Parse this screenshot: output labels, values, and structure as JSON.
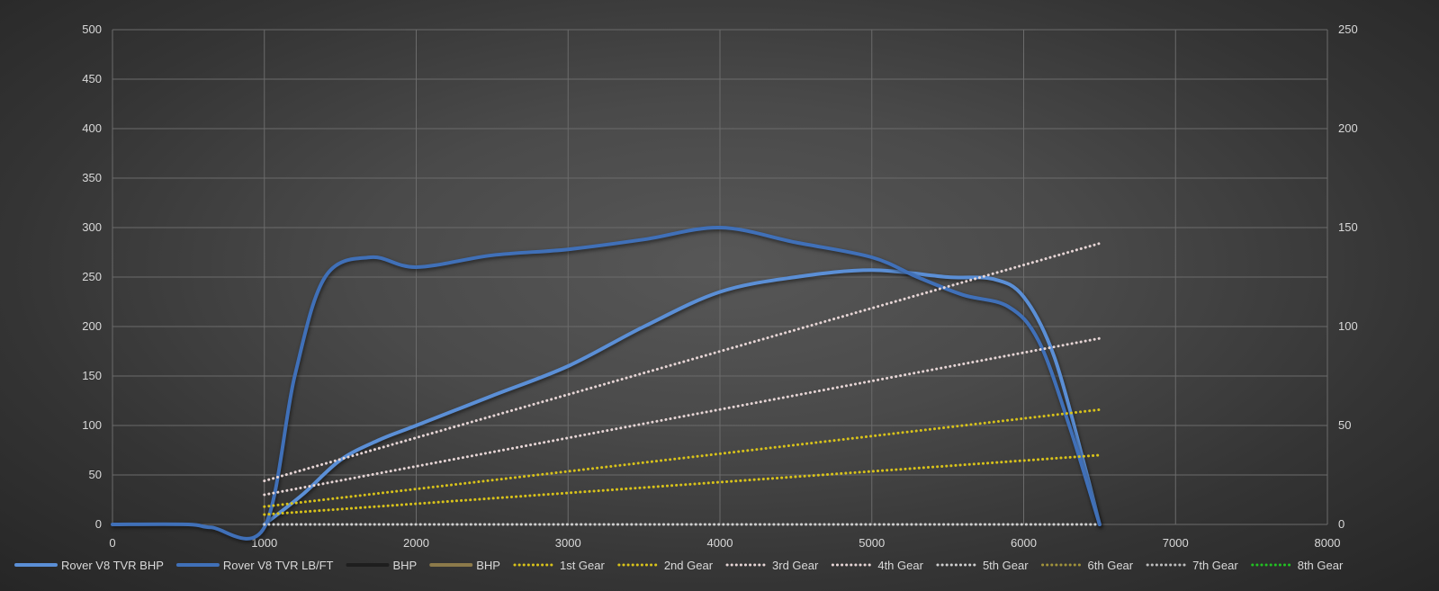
{
  "chart_data": {
    "type": "line",
    "x_axis": {
      "min": 0,
      "max": 8000,
      "ticks": [
        0,
        1000,
        2000,
        3000,
        4000,
        5000,
        6000,
        7000,
        8000
      ]
    },
    "y_axis_left": {
      "min": 0,
      "max": 500,
      "ticks": [
        0,
        50,
        100,
        150,
        200,
        250,
        300,
        350,
        400,
        450,
        500
      ]
    },
    "y_axis_right": {
      "min": 0,
      "max": 250,
      "ticks": [
        0,
        50,
        100,
        150,
        200,
        250
      ]
    },
    "grid": true,
    "legend_position": "bottom",
    "series": [
      {
        "name": "Rover V8 TVR BHP",
        "axis": "left",
        "style": "solid",
        "color": "#5b8fd6",
        "width": 4,
        "points": [
          [
            1000,
            0
          ],
          [
            1250,
            30
          ],
          [
            1500,
            65
          ],
          [
            1750,
            85
          ],
          [
            2000,
            100
          ],
          [
            2500,
            130
          ],
          [
            3000,
            160
          ],
          [
            3500,
            200
          ],
          [
            4000,
            235
          ],
          [
            4500,
            250
          ],
          [
            5000,
            257
          ],
          [
            5500,
            250
          ],
          [
            5800,
            248
          ],
          [
            6000,
            230
          ],
          [
            6200,
            170
          ],
          [
            6400,
            60
          ],
          [
            6500,
            0
          ]
        ]
      },
      {
        "name": "Rover V8 TVR LB/FT",
        "axis": "left",
        "style": "solid",
        "color": "#4070b8",
        "width": 4,
        "points": [
          [
            0,
            0
          ],
          [
            500,
            0
          ],
          [
            650,
            -3
          ],
          [
            1000,
            -3
          ],
          [
            1200,
            150
          ],
          [
            1400,
            250
          ],
          [
            1700,
            270
          ],
          [
            2000,
            260
          ],
          [
            2500,
            272
          ],
          [
            3000,
            278
          ],
          [
            3500,
            288
          ],
          [
            4000,
            300
          ],
          [
            4500,
            285
          ],
          [
            5000,
            270
          ],
          [
            5300,
            250
          ],
          [
            5600,
            232
          ],
          [
            5900,
            220
          ],
          [
            6100,
            185
          ],
          [
            6300,
            100
          ],
          [
            6500,
            0
          ]
        ]
      },
      {
        "name": "BHP",
        "axis": "right",
        "style": "solid",
        "color": "#1e1e1e",
        "width": 4,
        "points": []
      },
      {
        "name": "BHP",
        "axis": "right",
        "style": "solid",
        "color": "#8c7a4a",
        "width": 4,
        "points": []
      },
      {
        "name": "1st Gear",
        "axis": "right",
        "style": "dotted",
        "color": "#d8c21a",
        "width": 3,
        "points": [
          [
            1000,
            5
          ],
          [
            6500,
            35
          ]
        ]
      },
      {
        "name": "2nd Gear",
        "axis": "right",
        "style": "dotted",
        "color": "#d8c21a",
        "width": 3,
        "points": [
          [
            1000,
            9
          ],
          [
            6500,
            58
          ]
        ]
      },
      {
        "name": "3rd Gear",
        "axis": "right",
        "style": "dotted",
        "color": "#e6d5d5",
        "width": 3,
        "points": [
          [
            1000,
            15
          ],
          [
            6500,
            94
          ]
        ]
      },
      {
        "name": "4th Gear",
        "axis": "right",
        "style": "dotted",
        "color": "#e6d5d5",
        "width": 3,
        "points": [
          [
            1000,
            22
          ],
          [
            6500,
            142
          ]
        ]
      },
      {
        "name": "5th Gear",
        "axis": "right",
        "style": "dotted",
        "color": "#cfcfcf",
        "width": 3,
        "points": [
          [
            1000,
            0
          ],
          [
            6500,
            0
          ]
        ]
      },
      {
        "name": "6th Gear",
        "axis": "right",
        "style": "dotted",
        "color": "#a0923a",
        "width": 3,
        "points": []
      },
      {
        "name": "7th Gear",
        "axis": "right",
        "style": "dotted",
        "color": "#bdbdbd",
        "width": 3,
        "points": []
      },
      {
        "name": "8th Gear",
        "axis": "right",
        "style": "dotted",
        "color": "#22c022",
        "width": 3,
        "points": []
      }
    ]
  }
}
